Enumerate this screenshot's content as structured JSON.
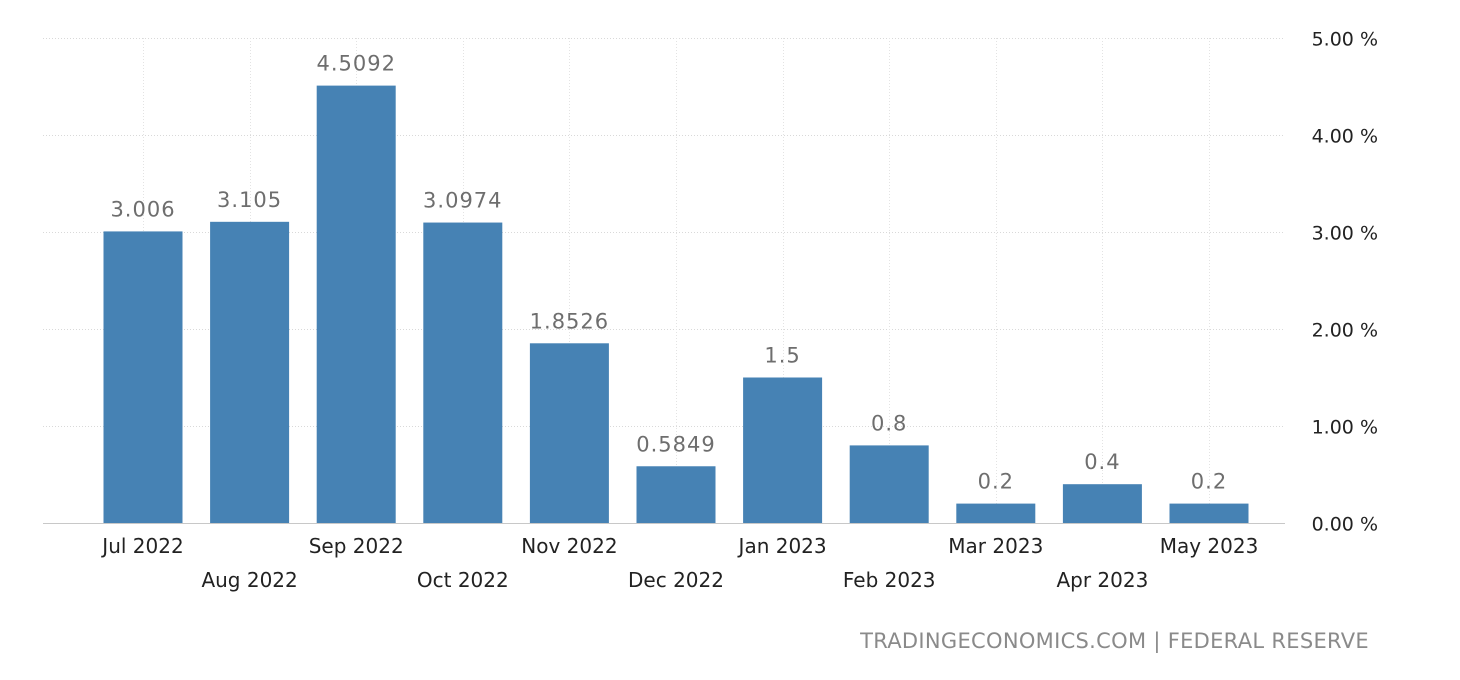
{
  "chart_data": {
    "type": "bar",
    "categories": [
      "Jul 2022",
      "Aug 2022",
      "Sep 2022",
      "Oct 2022",
      "Nov 2022",
      "Dec 2022",
      "Jan 2023",
      "Feb 2023",
      "Mar 2023",
      "Apr 2023",
      "May 2023"
    ],
    "values": [
      3.006,
      3.105,
      4.5092,
      3.0974,
      1.8526,
      0.5849,
      1.5,
      0.8,
      0.2,
      0.4,
      0.2
    ],
    "data_labels": [
      "3.006",
      "3.105",
      "4.5092",
      "3.0974",
      "1.8526",
      "0.5849",
      "1.5",
      "0.8",
      "0.2",
      "0.4",
      "0.2"
    ],
    "ylim": [
      0,
      5
    ],
    "yticks": [
      0,
      1,
      2,
      3,
      4,
      5
    ],
    "ytick_labels": [
      "0.00 %",
      "1.00 %",
      "2.00 %",
      "3.00 %",
      "4.00 %",
      "5.00 %"
    ],
    "y_axis_side": "right",
    "grid": true,
    "bar_color": "#4682b4",
    "title": "",
    "xlabel": "",
    "ylabel": ""
  },
  "source_text": "TRADINGECONOMICS.COM | FEDERAL RESERVE"
}
